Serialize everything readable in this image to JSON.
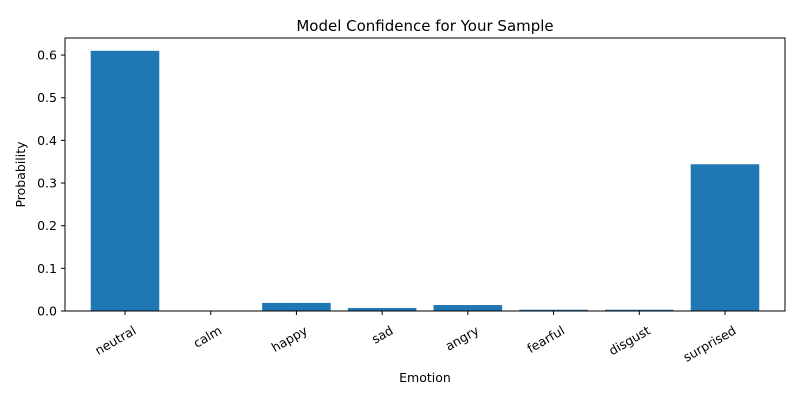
{
  "chart_data": {
    "type": "bar",
    "title": "Model Confidence for Your Sample",
    "xlabel": "Emotion",
    "ylabel": "Probability",
    "categories": [
      "neutral",
      "calm",
      "happy",
      "sad",
      "angry",
      "fearful",
      "disgust",
      "surprised"
    ],
    "values": [
      0.61,
      0.0003,
      0.019,
      0.007,
      0.014,
      0.003,
      0.003,
      0.344
    ],
    "ylim": [
      0,
      0.64
    ],
    "yticks": [
      0.0,
      0.1,
      0.2,
      0.3,
      0.4,
      0.5,
      0.6
    ],
    "ytick_labels": [
      "0.0",
      "0.1",
      "0.2",
      "0.3",
      "0.4",
      "0.5",
      "0.6"
    ],
    "bar_color": "#1f77b4",
    "grid": false,
    "legend": "none",
    "xtick_rotation": 30
  }
}
